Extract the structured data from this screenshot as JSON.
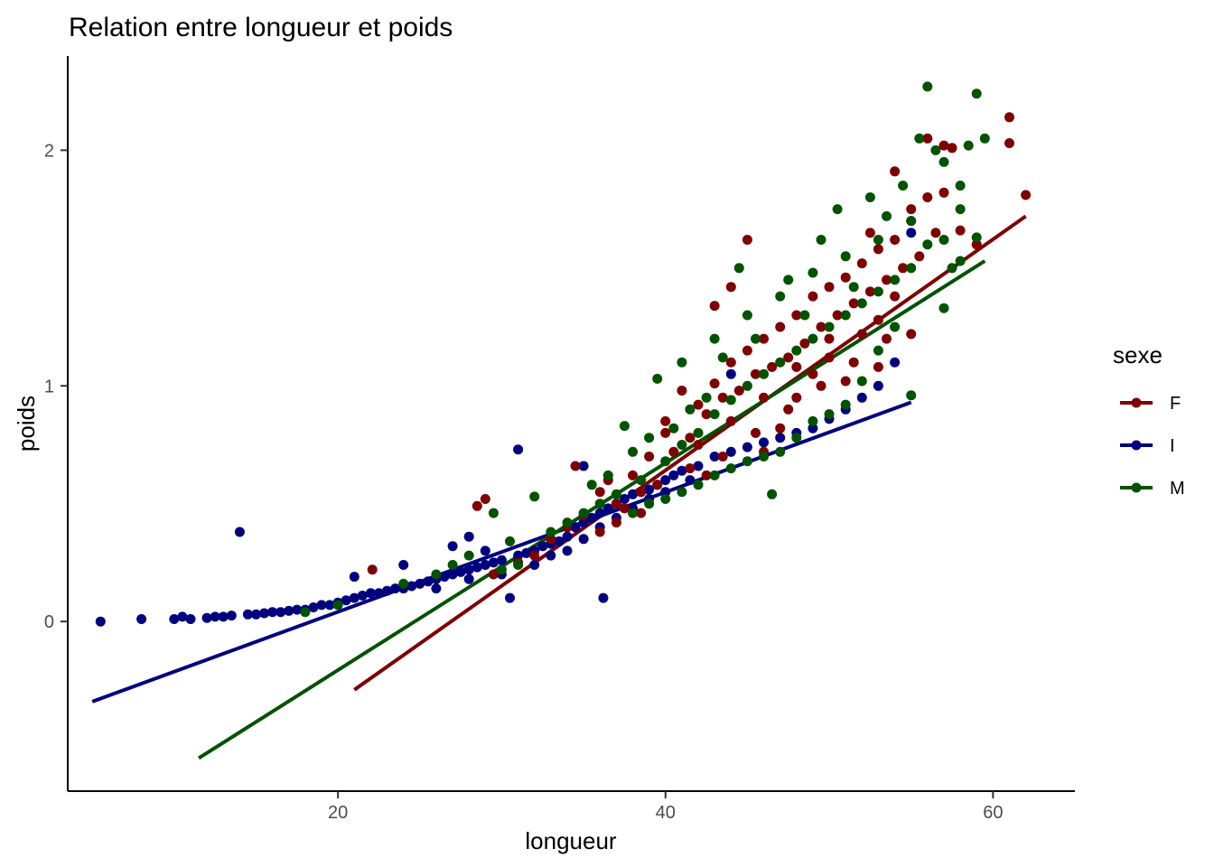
{
  "chart_data": {
    "type": "scatter",
    "title": "Relation entre longueur et poids",
    "xlabel": "longueur",
    "ylabel": "poids",
    "xlim": [
      3.5,
      65
    ],
    "ylim": [
      -0.72,
      2.4
    ],
    "xticks": [
      20,
      40,
      60
    ],
    "yticks": [
      0,
      1,
      2
    ],
    "xtick_labels": [
      "20",
      "40",
      "60"
    ],
    "ytick_labels": [
      "0",
      "1",
      "2"
    ],
    "grid": false,
    "legend": {
      "title": "sexe",
      "position": "right"
    },
    "series": [
      {
        "name": "F",
        "color": "#7f0000",
        "fit_line": {
          "x": [
            21,
            62
          ],
          "y": [
            -0.29,
            1.72
          ]
        },
        "points": [
          [
            22.1,
            0.22
          ],
          [
            28.5,
            0.49
          ],
          [
            29,
            0.52
          ],
          [
            34.5,
            0.66
          ],
          [
            36,
            0.55
          ],
          [
            37,
            0.5
          ],
          [
            38,
            0.62
          ],
          [
            39,
            0.7
          ],
          [
            39.5,
            0.58
          ],
          [
            40,
            0.8
          ],
          [
            40.5,
            0.72
          ],
          [
            41,
            0.98
          ],
          [
            41.5,
            0.78
          ],
          [
            42,
            0.92
          ],
          [
            42.5,
            0.88
          ],
          [
            43,
            1.01
          ],
          [
            43.5,
            0.95
          ],
          [
            44,
            1.1
          ],
          [
            44.5,
            0.98
          ],
          [
            45,
            1.15
          ],
          [
            45.5,
            1.05
          ],
          [
            46,
            1.2
          ],
          [
            46.5,
            1.08
          ],
          [
            47,
            1.25
          ],
          [
            47.5,
            1.12
          ],
          [
            48,
            1.3
          ],
          [
            48.5,
            1.18
          ],
          [
            49,
            1.38
          ],
          [
            49.5,
            1.25
          ],
          [
            50,
            1.42
          ],
          [
            50.5,
            1.3
          ],
          [
            51,
            1.46
          ],
          [
            51.5,
            1.35
          ],
          [
            52,
            1.52
          ],
          [
            52.5,
            1.4
          ],
          [
            53,
            1.58
          ],
          [
            53.5,
            1.45
          ],
          [
            54,
            1.62
          ],
          [
            54.5,
            1.5
          ],
          [
            55,
            1.7
          ],
          [
            55.5,
            1.55
          ],
          [
            56,
            1.8
          ],
          [
            56.5,
            1.65
          ],
          [
            57,
            1.82
          ],
          [
            57.5,
            2.01
          ],
          [
            58,
            1.66
          ],
          [
            59,
            1.6
          ],
          [
            61,
            2.03
          ],
          [
            62,
            1.81
          ],
          [
            61,
            2.14
          ],
          [
            43,
            1.34
          ],
          [
            44,
            1.42
          ],
          [
            45,
            1.62
          ],
          [
            46,
            0.72
          ],
          [
            47,
            0.82
          ],
          [
            48,
            0.95
          ],
          [
            49,
            1.05
          ],
          [
            50,
            1.12
          ],
          [
            51,
            1.02
          ],
          [
            52,
            1.22
          ],
          [
            53,
            1.28
          ],
          [
            54,
            1.38
          ],
          [
            54,
            1.91
          ],
          [
            55,
            1.75
          ],
          [
            56,
            2.05
          ],
          [
            57,
            2.02
          ],
          [
            40,
            0.85
          ],
          [
            42,
            0.75
          ],
          [
            44,
            0.85
          ],
          [
            46,
            0.95
          ],
          [
            48,
            1.08
          ],
          [
            50,
            1.2
          ],
          [
            53,
            1.08
          ],
          [
            55,
            1.22
          ],
          [
            52.5,
            1.65
          ],
          [
            36.5,
            0.6
          ],
          [
            37.5,
            0.48
          ],
          [
            38.5,
            0.55
          ],
          [
            41.5,
            0.65
          ],
          [
            43.5,
            0.7
          ],
          [
            45.5,
            0.8
          ],
          [
            47.5,
            0.9
          ],
          [
            49.5,
            1.0
          ],
          [
            51.5,
            1.1
          ],
          [
            53.5,
            1.2
          ],
          [
            29.5,
            0.2
          ],
          [
            31,
            0.25
          ],
          [
            32,
            0.28
          ],
          [
            33,
            0.35
          ],
          [
            34,
            0.4
          ],
          [
            35,
            0.45
          ],
          [
            36,
            0.38
          ],
          [
            37,
            0.42
          ],
          [
            38.5,
            0.46
          ],
          [
            42.5,
            0.62
          ]
        ]
      },
      {
        "name": "I",
        "color": "#00007f",
        "fit_line": {
          "x": [
            5,
            55
          ],
          "y": [
            -0.34,
            0.93
          ]
        },
        "points": [
          [
            5.5,
            0.0
          ],
          [
            8,
            0.01
          ],
          [
            10,
            0.01
          ],
          [
            10.5,
            0.02
          ],
          [
            11,
            0.01
          ],
          [
            12,
            0.015
          ],
          [
            12.5,
            0.02
          ],
          [
            13,
            0.02
          ],
          [
            13.5,
            0.025
          ],
          [
            14,
            0.38
          ],
          [
            14.5,
            0.03
          ],
          [
            15,
            0.03
          ],
          [
            15.5,
            0.035
          ],
          [
            16,
            0.04
          ],
          [
            16.5,
            0.04
          ],
          [
            17,
            0.045
          ],
          [
            17.5,
            0.05
          ],
          [
            18,
            0.05
          ],
          [
            18.5,
            0.06
          ],
          [
            19,
            0.07
          ],
          [
            19.5,
            0.07
          ],
          [
            20,
            0.08
          ],
          [
            20.5,
            0.09
          ],
          [
            21,
            0.19
          ],
          [
            21,
            0.1
          ],
          [
            21.5,
            0.11
          ],
          [
            22,
            0.12
          ],
          [
            22.5,
            0.12
          ],
          [
            23,
            0.13
          ],
          [
            23.5,
            0.14
          ],
          [
            24,
            0.24
          ],
          [
            24,
            0.14
          ],
          [
            24.5,
            0.15
          ],
          [
            25,
            0.16
          ],
          [
            25.5,
            0.17
          ],
          [
            26,
            0.18
          ],
          [
            26.5,
            0.19
          ],
          [
            27,
            0.32
          ],
          [
            27,
            0.2
          ],
          [
            27.5,
            0.21
          ],
          [
            28,
            0.22
          ],
          [
            28,
            0.36
          ],
          [
            28.5,
            0.23
          ],
          [
            29,
            0.24
          ],
          [
            29.5,
            0.25
          ],
          [
            30,
            0.26
          ],
          [
            30.5,
            0.1
          ],
          [
            31,
            0.73
          ],
          [
            31,
            0.28
          ],
          [
            31.5,
            0.29
          ],
          [
            32,
            0.3
          ],
          [
            32.5,
            0.32
          ],
          [
            33,
            0.33
          ],
          [
            33.5,
            0.34
          ],
          [
            34,
            0.36
          ],
          [
            34.5,
            0.4
          ],
          [
            35,
            0.42
          ],
          [
            35,
            0.66
          ],
          [
            35.5,
            0.44
          ],
          [
            36,
            0.46
          ],
          [
            36.2,
            0.1
          ],
          [
            36.5,
            0.48
          ],
          [
            37,
            0.5
          ],
          [
            37.5,
            0.52
          ],
          [
            38,
            0.54
          ],
          [
            38.5,
            0.55
          ],
          [
            39,
            0.56
          ],
          [
            39.5,
            0.58
          ],
          [
            40,
            0.6
          ],
          [
            40.5,
            0.62
          ],
          [
            41,
            0.64
          ],
          [
            41.5,
            0.6
          ],
          [
            42,
            0.66
          ],
          [
            43,
            0.7
          ],
          [
            44,
            1.05
          ],
          [
            44,
            0.72
          ],
          [
            45,
            0.74
          ],
          [
            46,
            0.76
          ],
          [
            47,
            0.78
          ],
          [
            48,
            0.8
          ],
          [
            49,
            0.82
          ],
          [
            50,
            0.86
          ],
          [
            51,
            0.9
          ],
          [
            52,
            0.95
          ],
          [
            53,
            1.0
          ],
          [
            54,
            1.1
          ],
          [
            55,
            1.65
          ],
          [
            33,
            0.28
          ],
          [
            34,
            0.3
          ],
          [
            35,
            0.35
          ],
          [
            36,
            0.4
          ],
          [
            37,
            0.44
          ],
          [
            38,
            0.48
          ],
          [
            39,
            0.52
          ],
          [
            40,
            0.55
          ],
          [
            26,
            0.14
          ],
          [
            28,
            0.18
          ],
          [
            30,
            0.2
          ],
          [
            32,
            0.24
          ],
          [
            29,
            0.3
          ]
        ]
      },
      {
        "name": "M",
        "color": "#005300",
        "fit_line": {
          "x": [
            11.5,
            59.5
          ],
          "y": [
            -0.58,
            1.53
          ]
        },
        "points": [
          [
            18,
            0.04
          ],
          [
            20,
            0.07
          ],
          [
            24,
            0.16
          ],
          [
            26,
            0.2
          ],
          [
            27,
            0.24
          ],
          [
            28,
            0.28
          ],
          [
            29.5,
            0.46
          ],
          [
            30.5,
            0.34
          ],
          [
            32,
            0.53
          ],
          [
            33,
            0.38
          ],
          [
            34,
            0.42
          ],
          [
            35,
            0.46
          ],
          [
            35.5,
            0.58
          ],
          [
            36,
            0.5
          ],
          [
            36.5,
            0.62
          ],
          [
            37,
            0.54
          ],
          [
            37.5,
            0.83
          ],
          [
            38,
            0.72
          ],
          [
            38.5,
            0.6
          ],
          [
            39,
            0.78
          ],
          [
            39.5,
            1.03
          ],
          [
            40,
            0.68
          ],
          [
            40.5,
            0.82
          ],
          [
            41,
            0.75
          ],
          [
            41.5,
            0.9
          ],
          [
            42,
            0.8
          ],
          [
            42.5,
            0.95
          ],
          [
            43,
            0.88
          ],
          [
            43.5,
            1.12
          ],
          [
            44,
            0.94
          ],
          [
            44.5,
            1.5
          ],
          [
            45,
            1.0
          ],
          [
            45.5,
            1.2
          ],
          [
            46,
            1.05
          ],
          [
            46.5,
            0.54
          ],
          [
            47,
            1.1
          ],
          [
            47.5,
            1.45
          ],
          [
            48,
            1.15
          ],
          [
            48.5,
            1.3
          ],
          [
            49,
            1.2
          ],
          [
            49.5,
            1.62
          ],
          [
            50,
            1.25
          ],
          [
            50.5,
            1.75
          ],
          [
            51,
            1.3
          ],
          [
            51.5,
            1.42
          ],
          [
            52,
            1.35
          ],
          [
            52.5,
            1.8
          ],
          [
            53,
            1.4
          ],
          [
            53.5,
            1.72
          ],
          [
            54,
            1.45
          ],
          [
            54.5,
            1.85
          ],
          [
            55,
            1.5
          ],
          [
            55,
            0.96
          ],
          [
            55.5,
            2.05
          ],
          [
            56,
            2.27
          ],
          [
            56.5,
            2.0
          ],
          [
            57,
            1.95
          ],
          [
            57.5,
            1.5
          ],
          [
            58,
            1.85
          ],
          [
            58.5,
            2.02
          ],
          [
            59,
            2.24
          ],
          [
            59.5,
            2.05
          ],
          [
            59,
            1.63
          ],
          [
            58,
            1.75
          ],
          [
            57,
            1.33
          ],
          [
            56,
            1.6
          ],
          [
            54,
            1.25
          ],
          [
            53,
            1.15
          ],
          [
            52,
            1.02
          ],
          [
            51,
            0.92
          ],
          [
            50,
            0.88
          ],
          [
            49,
            0.85
          ],
          [
            48,
            0.78
          ],
          [
            47,
            0.72
          ],
          [
            46,
            0.7
          ],
          [
            45,
            0.68
          ],
          [
            44,
            0.65
          ],
          [
            43,
            0.62
          ],
          [
            42,
            0.58
          ],
          [
            41,
            0.55
          ],
          [
            40,
            0.52
          ],
          [
            39,
            0.5
          ],
          [
            38,
            0.46
          ],
          [
            41,
            1.1
          ],
          [
            43,
            1.2
          ],
          [
            45,
            1.3
          ],
          [
            47,
            1.38
          ],
          [
            49,
            1.48
          ],
          [
            51,
            1.55
          ],
          [
            53,
            1.62
          ],
          [
            55,
            1.7
          ],
          [
            57,
            1.62
          ],
          [
            58,
            1.53
          ],
          [
            31,
            0.24
          ],
          [
            30,
            0.22
          ]
        ]
      }
    ]
  }
}
